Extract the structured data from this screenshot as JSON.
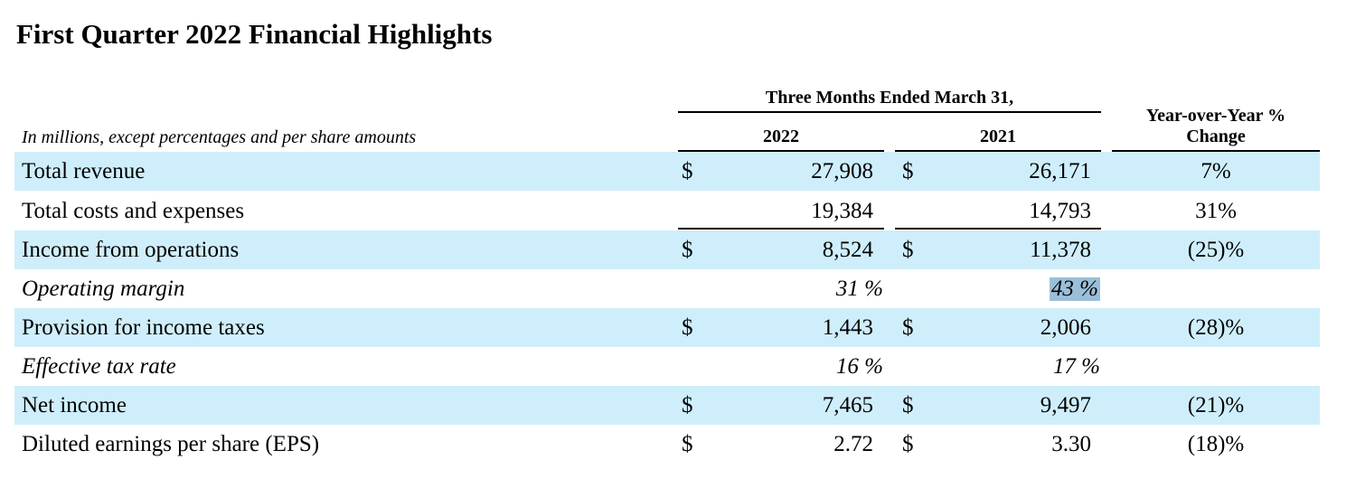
{
  "title": "First Quarter 2022 Financial Highlights",
  "header": {
    "group_label": "Three Months Ended March 31,",
    "col_2022": "2022",
    "col_2021": "2021",
    "yoy_line1": "Year-over-Year %",
    "yoy_line2": "Change",
    "note": "In millions, except percentages and per share amounts"
  },
  "rows": [
    {
      "label": "Total revenue",
      "cur1": "$",
      "v2022": "27,908",
      "cur2": "$",
      "v2021": "26,171",
      "yoy": "7%"
    },
    {
      "label": "Total costs and expenses",
      "v2022": "19,384",
      "v2021": "14,793",
      "yoy": "31%"
    },
    {
      "label": "Income from operations",
      "cur1": "$",
      "v2022": "8,524",
      "cur2": "$",
      "v2021": "11,378",
      "yoy": "(25)%"
    },
    {
      "label": "Operating margin",
      "v2022": "31 %",
      "v2021": "43 %",
      "yoy": ""
    },
    {
      "label": "Provision for income taxes",
      "cur1": "$",
      "v2022": "1,443",
      "cur2": "$",
      "v2021": "2,006",
      "yoy": "(28)%"
    },
    {
      "label": "Effective tax rate",
      "v2022": "16 %",
      "v2021": "17 %",
      "yoy": ""
    },
    {
      "label": "Net income",
      "cur1": "$",
      "v2022": "7,465",
      "cur2": "$",
      "v2021": "9,497",
      "yoy": "(21)%"
    },
    {
      "label": "Diluted earnings per share (EPS)",
      "cur1": "$",
      "v2022": "2.72",
      "cur2": "$",
      "v2021": "3.30",
      "yoy": "(18)%"
    }
  ],
  "colors": {
    "row_shade": "#cfeefb",
    "text_highlight": "#9bbfd9"
  }
}
